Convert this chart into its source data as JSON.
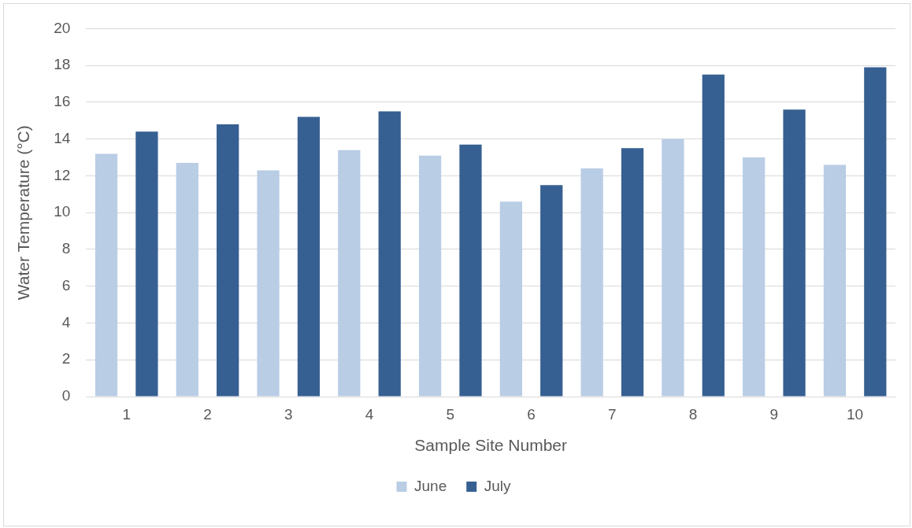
{
  "chart_data": {
    "type": "bar",
    "xlabel": "Sample Site Number",
    "ylabel": "Water Temperature (°C)",
    "categories": [
      "1",
      "2",
      "3",
      "4",
      "5",
      "6",
      "7",
      "8",
      "9",
      "10"
    ],
    "series": [
      {
        "name": "June",
        "color": "#b9cde5",
        "values": [
          13.2,
          12.7,
          12.3,
          13.4,
          13.1,
          10.6,
          12.4,
          14.0,
          13.0,
          12.6
        ]
      },
      {
        "name": "July",
        "color": "#376092",
        "values": [
          14.4,
          14.8,
          15.2,
          15.5,
          13.7,
          11.5,
          13.5,
          17.5,
          15.6,
          17.9
        ]
      }
    ],
    "ylim": [
      0,
      20
    ],
    "yticks": [
      0,
      2,
      4,
      6,
      8,
      10,
      12,
      14,
      16,
      18,
      20
    ],
    "grid": "y",
    "legend": "bottom"
  }
}
